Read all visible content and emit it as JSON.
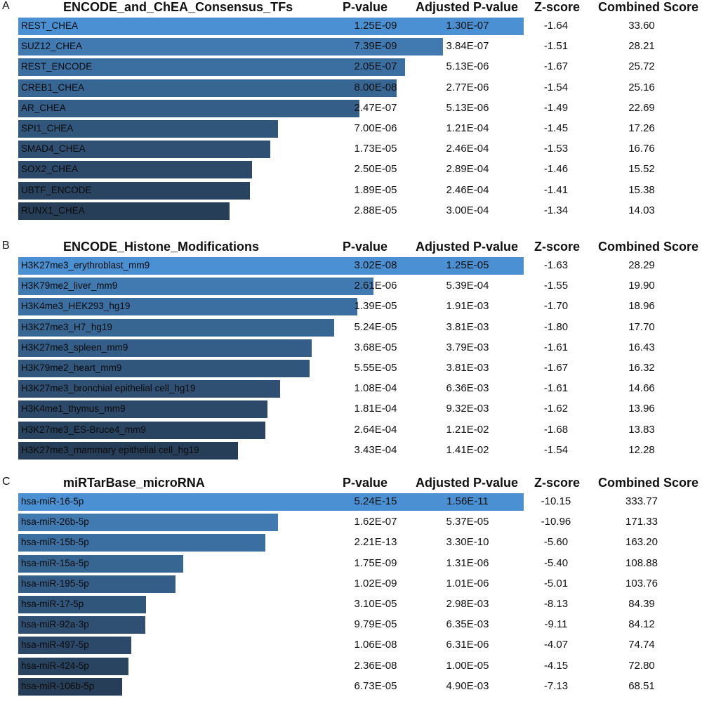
{
  "colors": {
    "top": "#4a90d2",
    "bottom": "#273e58"
  },
  "columns": {
    "pvalue": "P-value",
    "adjusted": "Adjusted P-value",
    "zscore": "Z-score",
    "combined": "Combined Score"
  },
  "chart_data": [
    {
      "type": "bar",
      "orientation": "horizontal",
      "panel": "A",
      "title": "ENCODE_and_ChEA_Consensus_TFs",
      "value_field": "combined_score",
      "rows": [
        {
          "term": "REST_CHEA",
          "pvalue": "1.25E-09",
          "adjusted": "1.30E-07",
          "zscore": "-1.64",
          "combined": "33.60",
          "combined_score": 33.6
        },
        {
          "term": "SUZ12_CHEA",
          "pvalue": "7.39E-09",
          "adjusted": "3.84E-07",
          "zscore": "-1.51",
          "combined": "28.21",
          "combined_score": 28.21
        },
        {
          "term": "REST_ENCODE",
          "pvalue": "2.05E-07",
          "adjusted": "5.13E-06",
          "zscore": "-1.67",
          "combined": "25.72",
          "combined_score": 25.72
        },
        {
          "term": "CREB1_CHEA",
          "pvalue": "8.00E-08",
          "adjusted": "2.77E-06",
          "zscore": "-1.54",
          "combined": "25.16",
          "combined_score": 25.16
        },
        {
          "term": "AR_CHEA",
          "pvalue": "2.47E-07",
          "adjusted": "5.13E-06",
          "zscore": "-1.49",
          "combined": "22.69",
          "combined_score": 22.69
        },
        {
          "term": "SPI1_CHEA",
          "pvalue": "7.00E-06",
          "adjusted": "1.21E-04",
          "zscore": "-1.45",
          "combined": "17.26",
          "combined_score": 17.26
        },
        {
          "term": "SMAD4_CHEA",
          "pvalue": "1.73E-05",
          "adjusted": "2.46E-04",
          "zscore": "-1.53",
          "combined": "16.76",
          "combined_score": 16.76
        },
        {
          "term": "SOX2_CHEA",
          "pvalue": "2.50E-05",
          "adjusted": "2.89E-04",
          "zscore": "-1.46",
          "combined": "15.52",
          "combined_score": 15.52
        },
        {
          "term": "UBTF_ENCODE",
          "pvalue": "1.89E-05",
          "adjusted": "2.46E-04",
          "zscore": "-1.41",
          "combined": "15.38",
          "combined_score": 15.38
        },
        {
          "term": "RUNX1_CHEA",
          "pvalue": "2.88E-05",
          "adjusted": "3.00E-04",
          "zscore": "-1.34",
          "combined": "14.03",
          "combined_score": 14.03
        }
      ]
    },
    {
      "type": "bar",
      "orientation": "horizontal",
      "panel": "B",
      "title": "ENCODE_Histone_Modifications",
      "value_field": "combined_score",
      "rows": [
        {
          "term": "H3K27me3_erythroblast_mm9",
          "pvalue": "3.02E-08",
          "adjusted": "1.25E-05",
          "zscore": "-1.63",
          "combined": "28.29",
          "combined_score": 28.29
        },
        {
          "term": "H3K79me2_liver_mm9",
          "pvalue": "2.61E-06",
          "adjusted": "5.39E-04",
          "zscore": "-1.55",
          "combined": "19.90",
          "combined_score": 19.9
        },
        {
          "term": "H3K4me3_HEK293_hg19",
          "pvalue": "1.39E-05",
          "adjusted": "1.91E-03",
          "zscore": "-1.70",
          "combined": "18.96",
          "combined_score": 18.96
        },
        {
          "term": "H3K27me3_H7_hg19",
          "pvalue": "5.24E-05",
          "adjusted": "3.81E-03",
          "zscore": "-1.80",
          "combined": "17.70",
          "combined_score": 17.7
        },
        {
          "term": "H3K27me3_spleen_mm9",
          "pvalue": "3.68E-05",
          "adjusted": "3.79E-03",
          "zscore": "-1.61",
          "combined": "16.43",
          "combined_score": 16.43
        },
        {
          "term": "H3K79me2_heart_mm9",
          "pvalue": "5.55E-05",
          "adjusted": "3.81E-03",
          "zscore": "-1.67",
          "combined": "16.32",
          "combined_score": 16.32
        },
        {
          "term": "H3K27me3_bronchial epithelial cell_hg19",
          "pvalue": "1.08E-04",
          "adjusted": "6.36E-03",
          "zscore": "-1.61",
          "combined": "14.66",
          "combined_score": 14.66
        },
        {
          "term": "H3K4me1_thymus_mm9",
          "pvalue": "1.81E-04",
          "adjusted": "9.32E-03",
          "zscore": "-1.62",
          "combined": "13.96",
          "combined_score": 13.96
        },
        {
          "term": "H3K27me3_ES-Bruce4_mm9",
          "pvalue": "2.64E-04",
          "adjusted": "1.21E-02",
          "zscore": "-1.68",
          "combined": "13.83",
          "combined_score": 13.83
        },
        {
          "term": "H3K27me3_mammary epithelial cell_hg19",
          "pvalue": "3.43E-04",
          "adjusted": "1.41E-02",
          "zscore": "-1.54",
          "combined": "12.28",
          "combined_score": 12.28
        }
      ]
    },
    {
      "type": "bar",
      "orientation": "horizontal",
      "panel": "C",
      "title": "miRTarBase_microRNA",
      "value_field": "combined_score",
      "rows": [
        {
          "term": "hsa-miR-16-5p",
          "pvalue": "5.24E-15",
          "adjusted": "1.56E-11",
          "zscore": "-10.15",
          "combined": "333.77",
          "combined_score": 333.77
        },
        {
          "term": "hsa-miR-26b-5p",
          "pvalue": "1.62E-07",
          "adjusted": "5.37E-05",
          "zscore": "-10.96",
          "combined": "171.33",
          "combined_score": 171.33
        },
        {
          "term": "hsa-miR-15b-5p",
          "pvalue": "2.21E-13",
          "adjusted": "3.30E-10",
          "zscore": "-5.60",
          "combined": "163.20",
          "combined_score": 163.2
        },
        {
          "term": "hsa-miR-15a-5p",
          "pvalue": "1.75E-09",
          "adjusted": "1.31E-06",
          "zscore": "-5.40",
          "combined": "108.88",
          "combined_score": 108.88
        },
        {
          "term": "hsa-miR-195-5p",
          "pvalue": "1.02E-09",
          "adjusted": "1.01E-06",
          "zscore": "-5.01",
          "combined": "103.76",
          "combined_score": 103.76
        },
        {
          "term": "hsa-miR-17-5p",
          "pvalue": "3.10E-05",
          "adjusted": "2.98E-03",
          "zscore": "-8.13",
          "combined": "84.39",
          "combined_score": 84.39
        },
        {
          "term": "hsa-miR-92a-3p",
          "pvalue": "9.79E-05",
          "adjusted": "6.35E-03",
          "zscore": "-9.11",
          "combined": "84.12",
          "combined_score": 84.12
        },
        {
          "term": "hsa-miR-497-5p",
          "pvalue": "1.06E-08",
          "adjusted": "6.31E-06",
          "zscore": "-4.07",
          "combined": "74.74",
          "combined_score": 74.74
        },
        {
          "term": "hsa-miR-424-5p",
          "pvalue": "2.36E-08",
          "adjusted": "1.00E-05",
          "zscore": "-4.15",
          "combined": "72.80",
          "combined_score": 72.8
        },
        {
          "term": "hsa-miR-106b-5p",
          "pvalue": "6.73E-05",
          "adjusted": "4.90E-03",
          "zscore": "-7.13",
          "combined": "68.51",
          "combined_score": 68.51
        }
      ]
    }
  ]
}
